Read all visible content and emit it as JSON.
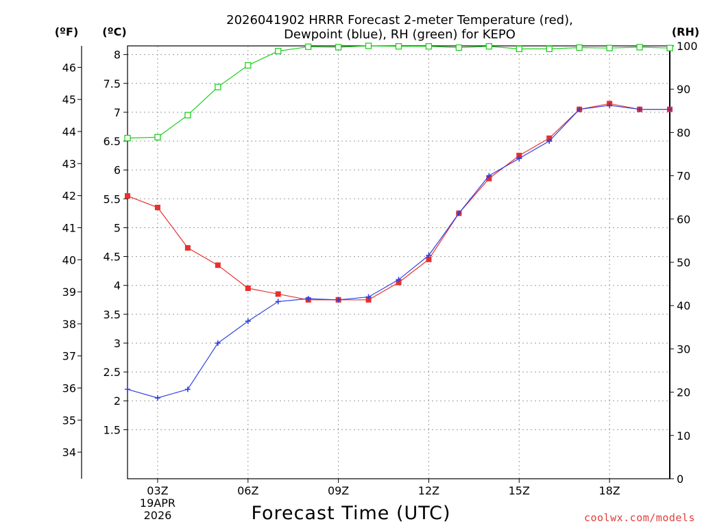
{
  "chart_data": {
    "type": "line",
    "title": "2026041902 HRRR Forecast 2-meter Temperature (red),",
    "subtitle": "Dewpoint (blue), RH (green) for KEPO",
    "xlabel": "Forecast Time (UTC)",
    "credit": "coolwx.com/models",
    "units": {
      "fahrenheit": "(ºF)",
      "celsius": "(ºC)",
      "rh": "(RH)"
    },
    "x_hours": [
      2,
      3,
      4,
      5,
      6,
      7,
      8,
      9,
      10,
      11,
      12,
      13,
      14,
      15,
      16,
      17,
      18,
      19,
      20
    ],
    "x_ticks": [
      {
        "hour": 3,
        "label": "03Z",
        "date_line1": "19APR",
        "date_line2": "2026"
      },
      {
        "hour": 6,
        "label": "06Z"
      },
      {
        "hour": 9,
        "label": "09Z"
      },
      {
        "hour": 12,
        "label": "12Z"
      },
      {
        "hour": 15,
        "label": "15Z"
      },
      {
        "hour": 18,
        "label": "18Z"
      }
    ],
    "xlim": [
      2,
      20
    ],
    "celsius_ylim": [
      0.65,
      8.15
    ],
    "celsius_ticks": [
      "1.5",
      "2",
      "2.5",
      "3",
      "3.5",
      "4",
      "4.5",
      "5",
      "5.5",
      "6",
      "6.5",
      "7",
      "7.5",
      "8"
    ],
    "fahrenheit_ticks": [
      "34",
      "35",
      "36",
      "37",
      "38",
      "39",
      "40",
      "41",
      "42",
      "43",
      "44",
      "45",
      "46"
    ],
    "rh_ylim": [
      0,
      100
    ],
    "rh_ticks": [
      "0",
      "10",
      "20",
      "30",
      "40",
      "50",
      "60",
      "70",
      "80",
      "90",
      "100"
    ],
    "series": [
      {
        "name": "Temperature",
        "unit": "C",
        "color": "#e8302f",
        "marker": "square",
        "values": [
          5.55,
          5.35,
          4.65,
          4.35,
          3.95,
          3.85,
          3.75,
          3.75,
          3.75,
          4.05,
          4.45,
          5.25,
          5.85,
          6.25,
          6.55,
          7.05,
          7.15,
          7.05,
          7.05
        ]
      },
      {
        "name": "Dewpoint",
        "unit": "C",
        "color": "#2f3fe0",
        "marker": "plus",
        "values": [
          2.2,
          2.05,
          2.2,
          3.0,
          3.38,
          3.72,
          3.77,
          3.75,
          3.8,
          4.1,
          4.52,
          5.25,
          5.9,
          6.2,
          6.5,
          7.05,
          7.12,
          7.05,
          7.05
        ]
      },
      {
        "name": "RH",
        "unit": "%",
        "color": "#1fcf1f",
        "marker": "open-square",
        "values": [
          78.7,
          78.9,
          84.0,
          90.5,
          95.5,
          98.8,
          99.8,
          99.7,
          100.0,
          99.9,
          99.9,
          99.6,
          99.9,
          99.3,
          99.3,
          99.6,
          99.5,
          99.7,
          99.5
        ]
      }
    ]
  }
}
